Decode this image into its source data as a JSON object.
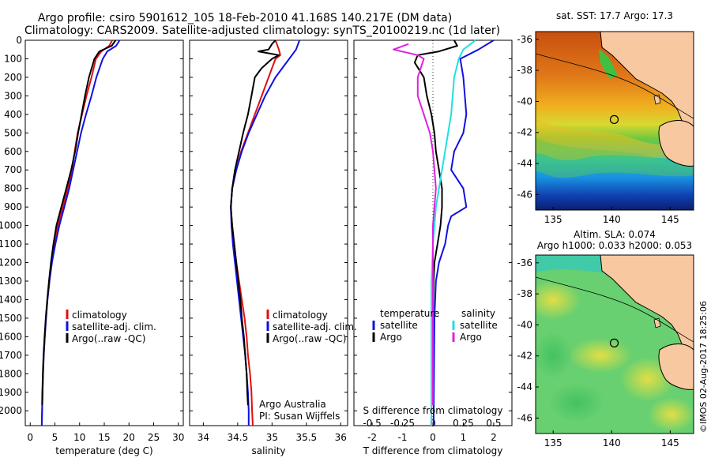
{
  "header": {
    "line1": "Argo profile: csiro 5901612_105 18-Feb-2010 41.168S 140.217E (DM data)",
    "line2": "Climatology: CARS2009. Satellite-adjusted climatology: synTS_20100219.nc (1d later)"
  },
  "colors": {
    "climatology": "#e01010",
    "satellite": "#1010e0",
    "argo": "#000000",
    "sal_satellite": "#20e0e0",
    "sal_argo": "#e020e0",
    "land": "#f8c8a0"
  },
  "chart_data": [
    {
      "type": "line",
      "panel": "temperature",
      "xlabel": "temperature (deg C)",
      "ylabel": "",
      "xlim": [
        -1,
        31
      ],
      "ylim": [
        2080,
        0
      ],
      "xticks": [
        0,
        5,
        10,
        15,
        20,
        25,
        30
      ],
      "yticks": [
        0,
        100,
        200,
        300,
        400,
        500,
        600,
        700,
        800,
        900,
        1000,
        1100,
        1200,
        1300,
        1400,
        1500,
        1600,
        1700,
        1800,
        1900,
        2000
      ],
      "legend": [
        "climatology",
        "satellite-adj. clim.",
        "Argo(..raw -QC)"
      ],
      "legend_position": "center",
      "series": [
        {
          "name": "climatology",
          "color": "#e01010",
          "points": [
            [
              16.6,
              0
            ],
            [
              16,
              30
            ],
            [
              14.4,
              60
            ],
            [
              13.3,
              100
            ],
            [
              12.4,
              200
            ],
            [
              11.4,
              300
            ],
            [
              10.5,
              400
            ],
            [
              9.6,
              500
            ],
            [
              9,
              600
            ],
            [
              8.4,
              700
            ],
            [
              7.6,
              800
            ],
            [
              6.6,
              900
            ],
            [
              5.6,
              1000
            ],
            [
              4.9,
              1100
            ],
            [
              4.3,
              1200
            ],
            [
              3.9,
              1300
            ],
            [
              3.5,
              1400
            ],
            [
              3.2,
              1500
            ],
            [
              2.95,
              1600
            ],
            [
              2.75,
              1700
            ],
            [
              2.6,
              1800
            ],
            [
              2.5,
              1900
            ],
            [
              2.4,
              2000
            ],
            [
              2.35,
              2080
            ]
          ]
        },
        {
          "name": "satellite-adj. clim.",
          "color": "#1010e0",
          "points": [
            [
              18.1,
              0
            ],
            [
              17.4,
              30
            ],
            [
              15.6,
              60
            ],
            [
              14.7,
              100
            ],
            [
              13.4,
              200
            ],
            [
              12.4,
              300
            ],
            [
              11.3,
              400
            ],
            [
              10.3,
              500
            ],
            [
              9.5,
              600
            ],
            [
              8.7,
              700
            ],
            [
              7.9,
              800
            ],
            [
              6.9,
              900
            ],
            [
              5.9,
              1000
            ],
            [
              5.1,
              1100
            ],
            [
              4.4,
              1200
            ],
            [
              3.9,
              1300
            ],
            [
              3.5,
              1400
            ],
            [
              3.2,
              1500
            ],
            [
              2.95,
              1600
            ],
            [
              2.75,
              1700
            ],
            [
              2.6,
              1800
            ],
            [
              2.5,
              1900
            ],
            [
              2.4,
              2000
            ],
            [
              2.35,
              2080
            ]
          ]
        },
        {
          "name": "Argo(..raw -QC)",
          "color": "#000000",
          "points": [
            [
              17.3,
              0
            ],
            [
              16.5,
              30
            ],
            [
              14,
              60
            ],
            [
              13,
              100
            ],
            [
              11.9,
              200
            ],
            [
              11.1,
              300
            ],
            [
              10.4,
              400
            ],
            [
              9.7,
              500
            ],
            [
              9.1,
              600
            ],
            [
              8.3,
              700
            ],
            [
              7.3,
              800
            ],
            [
              6.3,
              900
            ],
            [
              5.3,
              1000
            ],
            [
              4.7,
              1100
            ],
            [
              4.2,
              1200
            ],
            [
              3.8,
              1300
            ],
            [
              3.45,
              1400
            ],
            [
              3.15,
              1500
            ],
            [
              2.9,
              1600
            ],
            [
              2.7,
              1700
            ],
            [
              2.55,
              1800
            ],
            [
              2.45,
              1900
            ],
            [
              2.4,
              1970
            ]
          ]
        }
      ]
    },
    {
      "type": "line",
      "panel": "salinity",
      "xlabel": "salinity",
      "ylabel": "",
      "xlim": [
        33.8,
        36.1
      ],
      "ylim": [
        2080,
        0
      ],
      "xticks": [
        34,
        34.5,
        35,
        35.5,
        36
      ],
      "legend": [
        "climatology",
        "satellite-adj. clim.",
        "Argo(..raw -QC)"
      ],
      "legend_position": "center",
      "annotations": [
        "Argo Australia",
        "PI: Susan Wijffels"
      ],
      "series": [
        {
          "name": "climatology",
          "color": "#e01010",
          "points": [
            [
              35.05,
              0
            ],
            [
              35.1,
              50
            ],
            [
              35.12,
              80
            ],
            [
              35.05,
              100
            ],
            [
              34.95,
              200
            ],
            [
              34.85,
              300
            ],
            [
              34.75,
              400
            ],
            [
              34.65,
              500
            ],
            [
              34.55,
              600
            ],
            [
              34.48,
              700
            ],
            [
              34.42,
              800
            ],
            [
              34.4,
              900
            ],
            [
              34.42,
              1000
            ],
            [
              34.45,
              1100
            ],
            [
              34.48,
              1200
            ],
            [
              34.52,
              1300
            ],
            [
              34.56,
              1400
            ],
            [
              34.6,
              1500
            ],
            [
              34.63,
              1600
            ],
            [
              34.65,
              1700
            ],
            [
              34.68,
              1800
            ],
            [
              34.7,
              1900
            ],
            [
              34.71,
              2000
            ],
            [
              34.72,
              2080
            ]
          ]
        },
        {
          "name": "satellite-adj. clim.",
          "color": "#1010e0",
          "points": [
            [
              35.4,
              0
            ],
            [
              35.35,
              50
            ],
            [
              35.25,
              100
            ],
            [
              35.05,
              200
            ],
            [
              34.9,
              300
            ],
            [
              34.78,
              400
            ],
            [
              34.66,
              500
            ],
            [
              34.56,
              600
            ],
            [
              34.48,
              700
            ],
            [
              34.42,
              800
            ],
            [
              34.4,
              900
            ],
            [
              34.41,
              1000
            ],
            [
              34.43,
              1100
            ],
            [
              34.46,
              1200
            ],
            [
              34.49,
              1300
            ],
            [
              34.52,
              1400
            ],
            [
              34.55,
              1500
            ],
            [
              34.58,
              1600
            ],
            [
              34.61,
              1700
            ],
            [
              34.63,
              1800
            ],
            [
              34.65,
              1900
            ],
            [
              34.66,
              2000
            ],
            [
              34.66,
              2080
            ]
          ]
        },
        {
          "name": "Argo(..raw -QC)",
          "color": "#000000",
          "points": [
            [
              35.05,
              0
            ],
            [
              35,
              20
            ],
            [
              34.95,
              50
            ],
            [
              34.8,
              60
            ],
            [
              35.1,
              80
            ],
            [
              35.0,
              100
            ],
            [
              34.85,
              150
            ],
            [
              34.75,
              200
            ],
            [
              34.7,
              300
            ],
            [
              34.65,
              400
            ],
            [
              34.58,
              500
            ],
            [
              34.52,
              600
            ],
            [
              34.46,
              700
            ],
            [
              34.42,
              800
            ],
            [
              34.4,
              900
            ],
            [
              34.42,
              1000
            ],
            [
              34.45,
              1100
            ],
            [
              34.48,
              1200
            ],
            [
              34.51,
              1300
            ],
            [
              34.54,
              1400
            ],
            [
              34.56,
              1500
            ],
            [
              34.59,
              1600
            ],
            [
              34.61,
              1700
            ],
            [
              34.63,
              1800
            ],
            [
              34.64,
              1900
            ],
            [
              34.65,
              1970
            ]
          ]
        }
      ]
    },
    {
      "type": "line",
      "panel": "difference",
      "xlabel": "T difference from climatology",
      "top_label": "S difference from climatology",
      "xlim": [
        -2.6,
        2.6
      ],
      "ylim": [
        2080,
        0
      ],
      "xticks": [
        -2,
        -1,
        0,
        1,
        2
      ],
      "top_ticks": [
        "-0.5",
        "-0.25",
        "0",
        "0.25",
        "0.5"
      ],
      "legend": {
        "temperature_title": "temperature",
        "salinity_title": "salinity",
        "t_satellite": "satellite",
        "t_argo": "Argo",
        "s_satellite": "satellite",
        "s_argo": "Argo"
      },
      "series": [
        {
          "name": "T satellite",
          "color": "#1010e0",
          "points": [
            [
              2,
              0
            ],
            [
              1.5,
              50
            ],
            [
              0.9,
              100
            ],
            [
              1.0,
              200
            ],
            [
              1.1,
              400
            ],
            [
              1.0,
              500
            ],
            [
              0.7,
              600
            ],
            [
              0.6,
              700
            ],
            [
              1.0,
              800
            ],
            [
              1.1,
              900
            ],
            [
              0.6,
              950
            ],
            [
              0.5,
              1000
            ],
            [
              0.4,
              1100
            ],
            [
              0.2,
              1200
            ],
            [
              0.1,
              1300
            ],
            [
              0.05,
              1500
            ],
            [
              0.02,
              2080
            ]
          ]
        },
        {
          "name": "T Argo",
          "color": "#000000",
          "points": [
            [
              0.7,
              0
            ],
            [
              0.8,
              30
            ],
            [
              0.2,
              60
            ],
            [
              -0.5,
              80
            ],
            [
              -0.6,
              120
            ],
            [
              -0.3,
              200
            ],
            [
              -0.2,
              300
            ],
            [
              -0.05,
              400
            ],
            [
              0.05,
              500
            ],
            [
              0.1,
              600
            ],
            [
              0.2,
              700
            ],
            [
              0.3,
              800
            ],
            [
              0.3,
              900
            ],
            [
              0.25,
              1000
            ],
            [
              0.15,
              1100
            ],
            [
              0.05,
              1200
            ],
            [
              0.02,
              1300
            ],
            [
              0,
              1500
            ],
            [
              0,
              1970
            ]
          ]
        },
        {
          "name": "S satellite",
          "color": "#20e0e0",
          "points": [
            [
              1.4,
              0
            ],
            [
              1.0,
              50
            ],
            [
              0.85,
              100
            ],
            [
              0.7,
              200
            ],
            [
              0.65,
              300
            ],
            [
              0.6,
              400
            ],
            [
              0.5,
              500
            ],
            [
              0.4,
              600
            ],
            [
              0.3,
              700
            ],
            [
              0.2,
              800
            ],
            [
              0.1,
              900
            ],
            [
              0.05,
              1000
            ],
            [
              0,
              1100
            ],
            [
              -0.05,
              1300
            ],
            [
              -0.05,
              1600
            ],
            [
              -0.05,
              2080
            ]
          ]
        },
        {
          "name": "S Argo",
          "color": "#e020e0",
          "points": [
            [
              -0.8,
              20
            ],
            [
              -1.3,
              50
            ],
            [
              -0.5,
              80
            ],
            [
              -0.3,
              100
            ],
            [
              -0.4,
              150
            ],
            [
              -0.5,
              200
            ],
            [
              -0.5,
              300
            ],
            [
              -0.3,
              400
            ],
            [
              -0.1,
              500
            ],
            [
              0,
              600
            ],
            [
              0.05,
              700
            ],
            [
              0.1,
              800
            ],
            [
              0.05,
              900
            ],
            [
              0,
              1000
            ],
            [
              0,
              1970
            ]
          ]
        }
      ]
    }
  ],
  "maps": {
    "sst": {
      "title": "sat. SST: 17.7 Argo: 17.3",
      "xticks": [
        "135",
        "140",
        "145"
      ],
      "yticks": [
        "-36",
        "-38",
        "-40",
        "-42",
        "-44",
        "-46"
      ],
      "lonlim": [
        133.5,
        147
      ],
      "latlim": [
        -47,
        -35.5
      ],
      "argo_position": {
        "lon": 140.217,
        "lat": -41.168
      }
    },
    "sla": {
      "title1": "Altim. SLA: 0.074",
      "title2": "Argo h1000: 0.033 h2000: 0.053",
      "xticks": [
        "135",
        "140",
        "145"
      ],
      "yticks": [
        "-36",
        "-38",
        "-40",
        "-42",
        "-44",
        "-46"
      ],
      "lonlim": [
        133.5,
        147
      ],
      "latlim": [
        -47,
        -35.5
      ],
      "argo_position": {
        "lon": 140.217,
        "lat": -41.168
      }
    },
    "credit": "©IMOS 02-Aug-2017 18:25:06"
  }
}
